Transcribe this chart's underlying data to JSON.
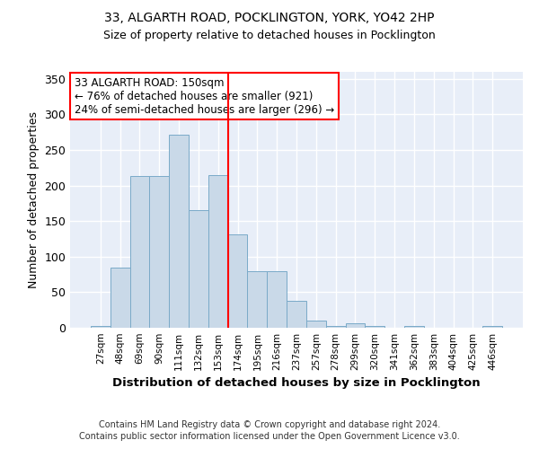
{
  "title1": "33, ALGARTH ROAD, POCKLINGTON, YORK, YO42 2HP",
  "title2": "Size of property relative to detached houses in Pocklington",
  "xlabel": "Distribution of detached houses by size in Pocklington",
  "ylabel": "Number of detached properties",
  "categories": [
    "27sqm",
    "48sqm",
    "69sqm",
    "90sqm",
    "111sqm",
    "132sqm",
    "153sqm",
    "174sqm",
    "195sqm",
    "216sqm",
    "237sqm",
    "257sqm",
    "278sqm",
    "299sqm",
    "320sqm",
    "341sqm",
    "362sqm",
    "383sqm",
    "404sqm",
    "425sqm",
    "446sqm"
  ],
  "values": [
    2,
    85,
    213,
    213,
    272,
    165,
    215,
    132,
    80,
    80,
    38,
    10,
    3,
    6,
    3,
    0,
    3,
    0,
    0,
    0,
    2
  ],
  "bar_color": "#c9d9e8",
  "bar_edge_color": "#7aaac8",
  "red_line_x": 6.5,
  "annotation_title": "33 ALGARTH ROAD: 150sqm",
  "annotation_line1": "← 76% of detached houses are smaller (921)",
  "annotation_line2": "24% of semi-detached houses are larger (296) →",
  "ylim": [
    0,
    360
  ],
  "yticks": [
    0,
    50,
    100,
    150,
    200,
    250,
    300,
    350
  ],
  "bg_color": "#e8eef8",
  "footer1": "Contains HM Land Registry data © Crown copyright and database right 2024.",
  "footer2": "Contains public sector information licensed under the Open Government Licence v3.0."
}
